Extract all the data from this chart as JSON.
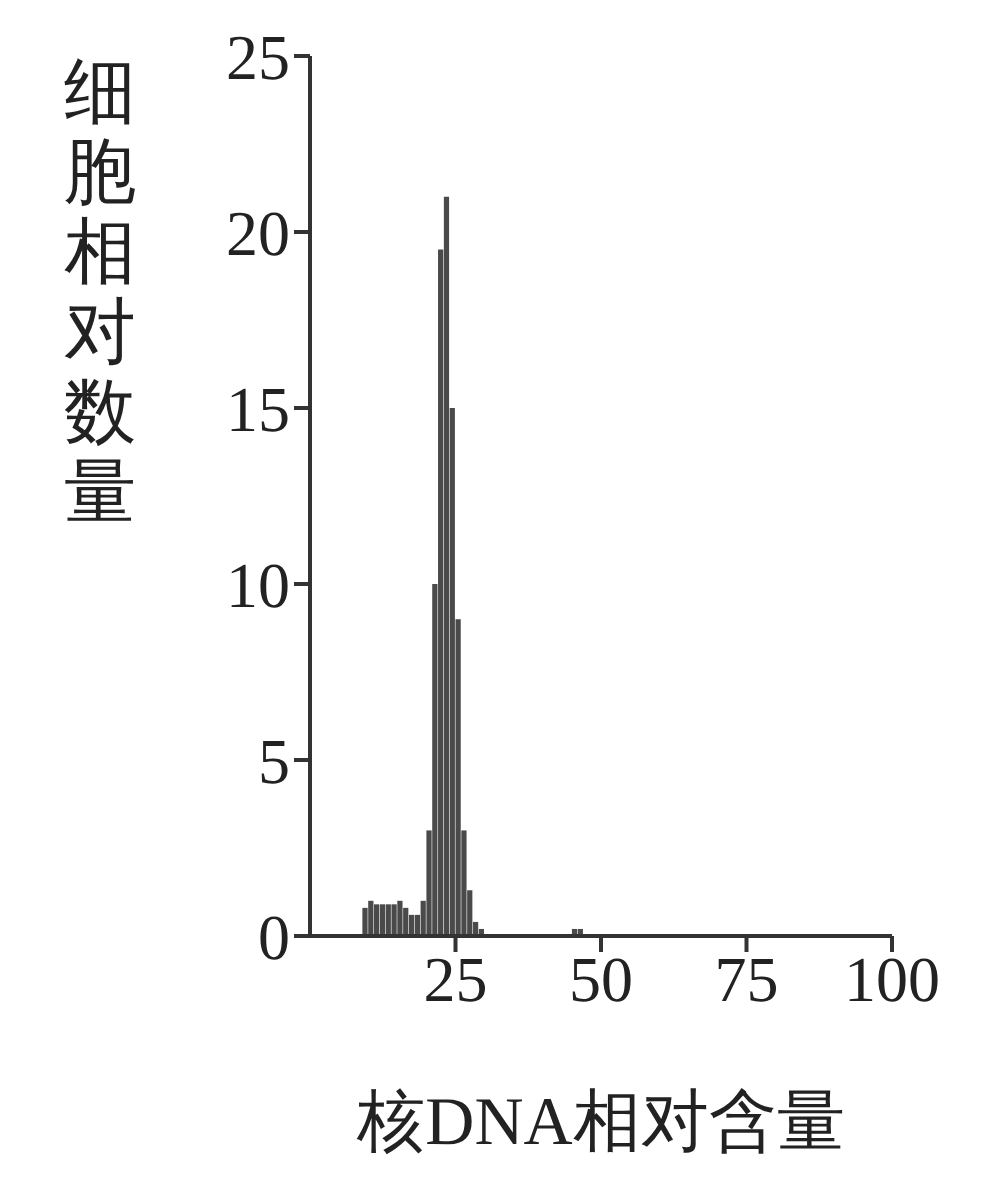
{
  "chart_data": {
    "type": "histogram",
    "xlabel": "核DNA相对含量",
    "ylabel": "细胞相对数量",
    "color": "#4a4a4a",
    "bins": [
      9,
      10,
      11,
      12,
      13,
      14,
      15,
      16,
      17,
      18,
      19,
      20,
      21,
      22,
      23,
      24,
      25,
      26,
      27,
      28,
      29,
      30,
      31,
      32,
      33,
      34,
      35,
      36,
      37,
      38,
      39,
      40,
      41,
      42,
      43,
      44,
      45,
      46,
      47,
      48,
      49,
      50,
      51,
      52,
      53,
      54,
      55,
      56,
      57,
      58
    ],
    "values": [
      0.8,
      1.0,
      0.9,
      0.9,
      0.9,
      0.9,
      1.0,
      0.8,
      0.6,
      0.6,
      1.0,
      3,
      10,
      19.5,
      21,
      15,
      9,
      3,
      1.3,
      0.4,
      0.2,
      null,
      null,
      null,
      null,
      null,
      null,
      null,
      null,
      null,
      null,
      null,
      null,
      null,
      null,
      null,
      0.2,
      0.2,
      null,
      null,
      null,
      null,
      null,
      null,
      null,
      null,
      null,
      null,
      null
    ],
    "xlim": [
      0,
      100
    ],
    "xticks": [
      25,
      50,
      75,
      100
    ],
    "ylim": [
      0,
      25
    ],
    "yticks": [
      0,
      5,
      10,
      15,
      20,
      25
    ]
  }
}
